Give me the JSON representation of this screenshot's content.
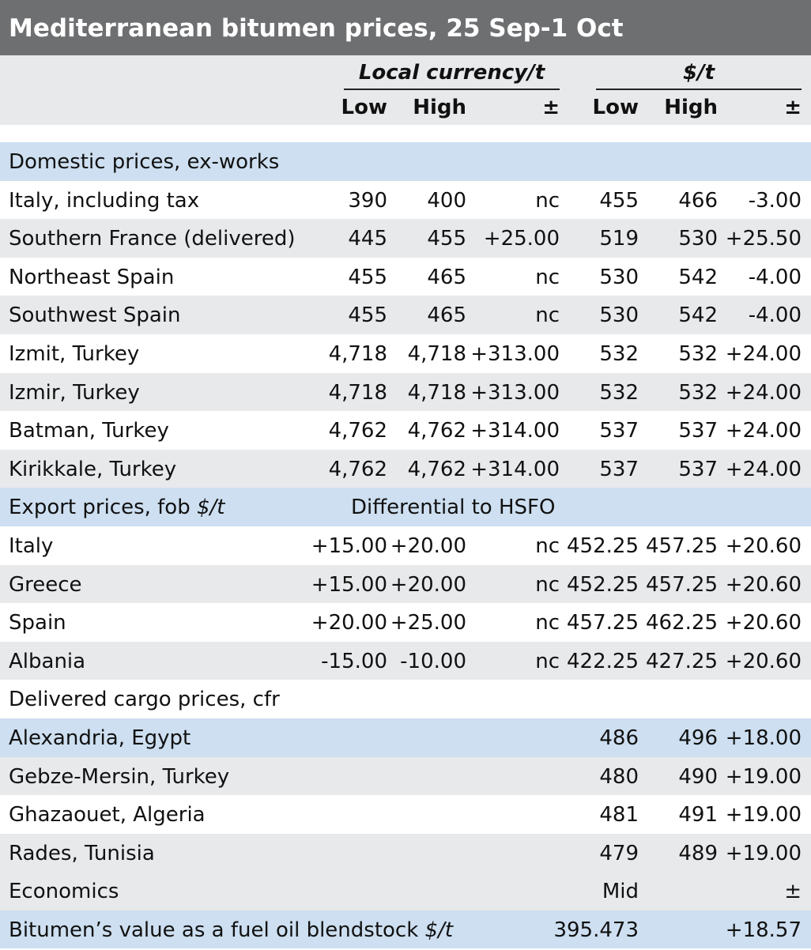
{
  "title": "Mediterranean bitumen prices, 25 Sep-1 Oct",
  "header": {
    "group_local": "Local currency/t",
    "group_usd": "$/t",
    "low": "Low",
    "high": "High",
    "change": "±"
  },
  "sections": {
    "domestic": "Domestic prices, ex-works",
    "export_prefix": "Export prices, fob ",
    "export_unit": "$/t",
    "export_note": "Differential to HSFO",
    "delivered": "Delivered cargo prices, cfr",
    "economics": "Economics",
    "economics_mid": "Mid",
    "economics_change": "±"
  },
  "domestic_rows": [
    {
      "name": "Italy, including tax",
      "lc_low": "390",
      "lc_high": "400",
      "lc_chg": "nc",
      "usd_low": "455",
      "usd_high": "466",
      "usd_chg": "-3.00"
    },
    {
      "name": "Southern France (delivered)",
      "lc_low": "445",
      "lc_high": "455",
      "lc_chg": "+25.00",
      "usd_low": "519",
      "usd_high": "530",
      "usd_chg": "+25.50"
    },
    {
      "name": "Northeast Spain",
      "lc_low": "455",
      "lc_high": "465",
      "lc_chg": "nc",
      "usd_low": "530",
      "usd_high": "542",
      "usd_chg": "-4.00"
    },
    {
      "name": "Southwest Spain",
      "lc_low": "455",
      "lc_high": "465",
      "lc_chg": "nc",
      "usd_low": "530",
      "usd_high": "542",
      "usd_chg": "-4.00"
    },
    {
      "name": "Izmit, Turkey",
      "lc_low": "4,718",
      "lc_high": "4,718",
      "lc_chg": "+313.00",
      "usd_low": "532",
      "usd_high": "532",
      "usd_chg": "+24.00"
    },
    {
      "name": "Izmir, Turkey",
      "lc_low": "4,718",
      "lc_high": "4,718",
      "lc_chg": "+313.00",
      "usd_low": "532",
      "usd_high": "532",
      "usd_chg": "+24.00"
    },
    {
      "name": "Batman, Turkey",
      "lc_low": "4,762",
      "lc_high": "4,762",
      "lc_chg": "+314.00",
      "usd_low": "537",
      "usd_high": "537",
      "usd_chg": "+24.00"
    },
    {
      "name": "Kirikkale, Turkey",
      "lc_low": "4,762",
      "lc_high": "4,762",
      "lc_chg": "+314.00",
      "usd_low": "537",
      "usd_high": "537",
      "usd_chg": "+24.00"
    }
  ],
  "export_rows": [
    {
      "name": "Italy",
      "lc_low": "+15.00",
      "lc_high": "+20.00",
      "lc_chg": "nc",
      "usd_low": "452.25",
      "usd_high": "457.25",
      "usd_chg": "+20.60"
    },
    {
      "name": "Greece",
      "lc_low": "+15.00",
      "lc_high": "+20.00",
      "lc_chg": "nc",
      "usd_low": "452.25",
      "usd_high": "457.25",
      "usd_chg": "+20.60"
    },
    {
      "name": "Spain",
      "lc_low": "+20.00",
      "lc_high": "+25.00",
      "lc_chg": "nc",
      "usd_low": "457.25",
      "usd_high": "462.25",
      "usd_chg": "+20.60"
    },
    {
      "name": "Albania",
      "lc_low": "-15.00",
      "lc_high": "-10.00",
      "lc_chg": "nc",
      "usd_low": "422.25",
      "usd_high": "427.25",
      "usd_chg": "+20.60"
    }
  ],
  "delivered_rows": [
    {
      "name": "Alexandria, Egypt",
      "usd_low": "486",
      "usd_high": "496",
      "usd_chg": "+18.00"
    },
    {
      "name": "Gebze-Mersin, Turkey",
      "usd_low": "480",
      "usd_high": "490",
      "usd_chg": "+19.00"
    },
    {
      "name": "Ghazaouet, Algeria",
      "usd_low": "481",
      "usd_high": "491",
      "usd_chg": "+19.00"
    },
    {
      "name": "Rades, Tunisia",
      "usd_low": "479",
      "usd_high": "489",
      "usd_chg": "+19.00"
    }
  ],
  "economics_row": {
    "name_prefix": "Bitumen’s value as a fuel oil blendstock ",
    "name_unit": "$/t",
    "mid": "395.473",
    "change": "+18.57"
  },
  "colors": {
    "title_bg": "#6e6f71",
    "row_shade": "#e8e9eb",
    "row_blue": "#cddff0"
  }
}
